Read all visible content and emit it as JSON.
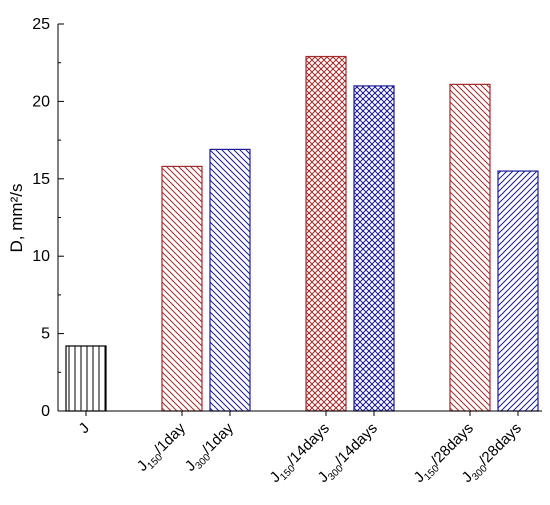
{
  "chart_data": {
    "type": "bar",
    "ylabel": "D, mm²/s",
    "ylim": [
      0,
      25
    ],
    "yticks": [
      "0",
      "5",
      "10",
      "15",
      "20",
      "25"
    ],
    "categories": [
      "J",
      "J150/1day",
      "J300/1day",
      "J150/14days",
      "J300/14days",
      "J150/28days",
      "J300/28days"
    ],
    "category_labels": [
      {
        "main": "J",
        "sub": "",
        "suffix": ""
      },
      {
        "main": "J",
        "sub": "150",
        "suffix": "/1day"
      },
      {
        "main": "J",
        "sub": "300",
        "suffix": "/1day"
      },
      {
        "main": "J",
        "sub": "150",
        "suffix": "/14days"
      },
      {
        "main": "J",
        "sub": "300",
        "suffix": "/14days"
      },
      {
        "main": "J",
        "sub": "150",
        "suffix": "/28days"
      },
      {
        "main": "J",
        "sub": "300",
        "suffix": "/28days"
      }
    ],
    "values": [
      4.2,
      15.8,
      16.9,
      22.9,
      21.0,
      21.1,
      15.5
    ],
    "grid": false,
    "legend": "none",
    "bar_styles": [
      {
        "color": "#000000",
        "pattern": "vertical"
      },
      {
        "color": "#a52a2a",
        "pattern": "diagonal-down"
      },
      {
        "color": "#1a1a9a",
        "pattern": "diagonal-down"
      },
      {
        "color": "#a52a2a",
        "pattern": "crosshatch"
      },
      {
        "color": "#1a1a9a",
        "pattern": "crosshatch"
      },
      {
        "color": "#a52a2a",
        "pattern": "diagonal-down"
      },
      {
        "color": "#1a1a9a",
        "pattern": "diagonal-up"
      }
    ]
  }
}
